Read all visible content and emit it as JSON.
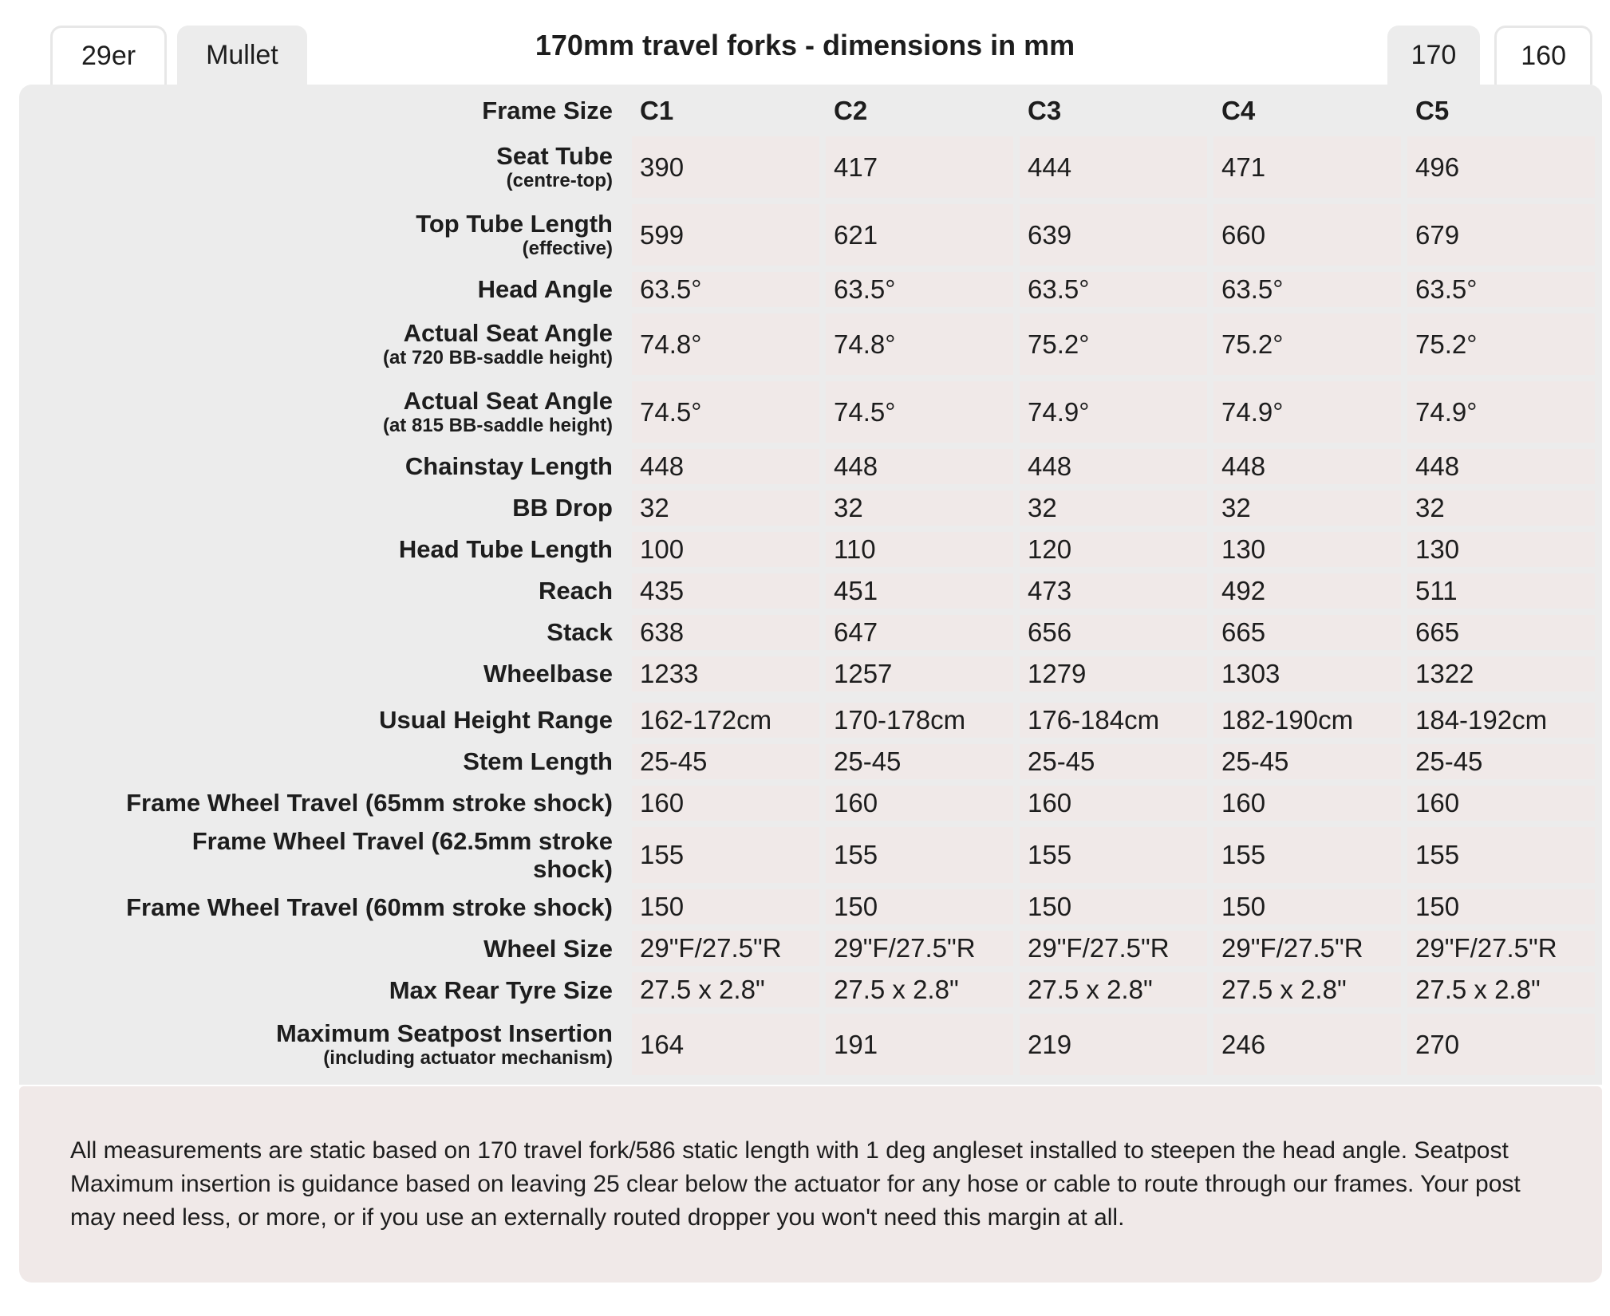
{
  "title": "170mm travel forks - dimensions in mm",
  "tabs": {
    "wheel": [
      {
        "label": "29er",
        "active": false
      },
      {
        "label": "Mullet",
        "active": true
      }
    ],
    "travel": [
      {
        "label": "170",
        "active": true
      },
      {
        "label": "160",
        "active": false
      }
    ]
  },
  "table": {
    "header_label": "Frame Size",
    "columns": [
      "C1",
      "C2",
      "C3",
      "C4",
      "C5"
    ],
    "sections": [
      {
        "rows": [
          {
            "label": "Seat Tube",
            "sublabel": "(centre-top)",
            "values": [
              "390",
              "417",
              "444",
              "471",
              "496"
            ]
          },
          {
            "label": "Top Tube Length",
            "sublabel": "(effective)",
            "values": [
              "599",
              "621",
              "639",
              "660",
              "679"
            ]
          },
          {
            "label": "Head Angle",
            "values": [
              "63.5°",
              "63.5°",
              "63.5°",
              "63.5°",
              "63.5°"
            ]
          },
          {
            "label": "Actual Seat Angle",
            "sublabel": "(at 720 BB-saddle height)",
            "values": [
              "74.8°",
              "74.8°",
              "75.2°",
              "75.2°",
              "75.2°"
            ]
          },
          {
            "label": "Actual Seat Angle",
            "sublabel": "(at 815 BB-saddle height)",
            "values": [
              "74.5°",
              "74.5°",
              "74.9°",
              "74.9°",
              "74.9°"
            ]
          },
          {
            "label": "Chainstay Length",
            "values": [
              "448",
              "448",
              "448",
              "448",
              "448"
            ]
          },
          {
            "label": "BB Drop",
            "values": [
              "32",
              "32",
              "32",
              "32",
              "32"
            ]
          },
          {
            "label": "Head Tube Length",
            "values": [
              "100",
              "110",
              "120",
              "130",
              "130"
            ]
          },
          {
            "label": "Reach",
            "values": [
              "435",
              "451",
              "473",
              "492",
              "511"
            ]
          },
          {
            "label": "Stack",
            "values": [
              "638",
              "647",
              "656",
              "665",
              "665"
            ]
          },
          {
            "label": "Wheelbase",
            "values": [
              "1233",
              "1257",
              "1279",
              "1303",
              "1322"
            ]
          }
        ]
      },
      {
        "rows": [
          {
            "label": "Usual Height Range",
            "values": [
              "162-172cm",
              "170-178cm",
              "176-184cm",
              "182-190cm",
              "184-192cm"
            ]
          },
          {
            "label": "Stem Length",
            "values": [
              "25-45",
              "25-45",
              "25-45",
              "25-45",
              "25-45"
            ]
          },
          {
            "label": "Frame Wheel Travel (65mm stroke shock)",
            "values": [
              "160",
              "160",
              "160",
              "160",
              "160"
            ]
          },
          {
            "label": "Frame Wheel Travel (62.5mm stroke shock)",
            "values": [
              "155",
              "155",
              "155",
              "155",
              "155"
            ]
          },
          {
            "label": "Frame Wheel Travel (60mm stroke shock)",
            "values": [
              "150",
              "150",
              "150",
              "150",
              "150"
            ]
          },
          {
            "label": "Wheel Size",
            "values": [
              "29\"F/27.5\"R",
              "29\"F/27.5\"R",
              "29\"F/27.5\"R",
              "29\"F/27.5\"R",
              "29\"F/27.5\"R"
            ]
          },
          {
            "label": "Max Rear Tyre Size",
            "values": [
              "27.5 x 2.8\"",
              "27.5 x 2.8\"",
              "27.5 x 2.8\"",
              "27.5 x 2.8\"",
              "27.5 x 2.8\""
            ]
          },
          {
            "label": "Maximum Seatpost Insertion",
            "sublabel": "(including actuator mechanism)",
            "values": [
              "164",
              "191",
              "219",
              "246",
              "270"
            ]
          }
        ]
      }
    ]
  },
  "footnote": "All measurements are static based on 170 travel fork/586 static length with 1 deg angleset installed to steepen the head angle. Seatpost Maximum insertion is guidance based on leaving 25 clear below the actuator for any hose or cable to route through our frames. Your post may need less, or more, or if you use an externally routed dropper you won't need this margin at all.",
  "colors": {
    "page_bg": "#ffffff",
    "table_bg": "#ececec",
    "cell_bg": "#f0e9e8",
    "footnote_bg": "#f0e9e8",
    "text": "#1d1d1d",
    "tab_border": "#e7e7e7"
  }
}
